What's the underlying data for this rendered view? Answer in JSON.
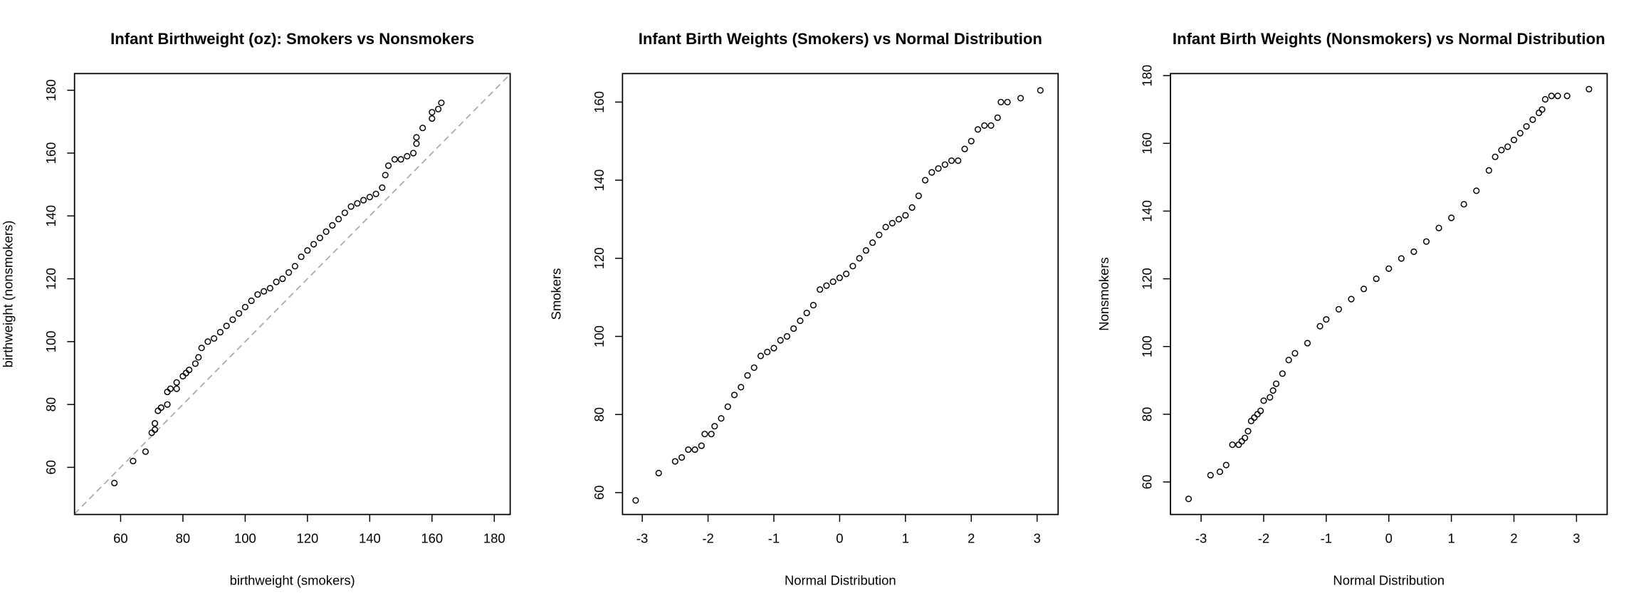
{
  "chart_data": [
    {
      "type": "scatter",
      "title": "Infant Birthweight (oz): Smokers vs Nonsmokers",
      "x_label": "birthweight (smokers)",
      "y_label": "birthweight (nonsmokers)",
      "x": [
        58,
        64,
        68,
        70,
        71,
        71,
        72,
        73,
        75,
        75,
        76,
        78,
        78,
        80,
        81,
        82,
        84,
        85,
        86,
        88,
        90,
        92,
        94,
        96,
        98,
        100,
        102,
        104,
        106,
        108,
        110,
        112,
        114,
        116,
        118,
        120,
        122,
        124,
        126,
        128,
        130,
        132,
        134,
        136,
        138,
        140,
        142,
        144,
        145,
        146,
        148,
        150,
        152,
        154,
        155,
        155,
        157,
        160,
        160,
        162,
        163
      ],
      "values": [
        55,
        62,
        65,
        71,
        72,
        74,
        78,
        79,
        80,
        84,
        85,
        85,
        87,
        89,
        90,
        91,
        93,
        95,
        98,
        100,
        101,
        103,
        105,
        107,
        109,
        111,
        113,
        115,
        116,
        117,
        119,
        120,
        122,
        124,
        127,
        129,
        131,
        133,
        135,
        137,
        139,
        141,
        143,
        144,
        145,
        146,
        147,
        149,
        153,
        156,
        158,
        158,
        159,
        160,
        163,
        165,
        168,
        171,
        173,
        174,
        176
      ],
      "color": "#000000",
      "diagonal_line": true,
      "diagonal_color": "#aaaaaa",
      "xlim": [
        45.2,
        185.1
      ],
      "ylim": [
        45,
        185.3
      ],
      "xticks": [
        60,
        80,
        100,
        120,
        140,
        160,
        180
      ],
      "yticks": [
        60,
        80,
        100,
        120,
        140,
        160,
        180
      ]
    },
    {
      "type": "scatter",
      "title": "Infant Birth Weights (Smokers) vs Normal Distribution",
      "x_label": "Normal Distribution",
      "y_label": "Smokers",
      "x": [
        -3.1,
        -2.75,
        -2.5,
        -2.4,
        -2.3,
        -2.2,
        -2.1,
        -2.05,
        -1.95,
        -1.9,
        -1.8,
        -1.7,
        -1.6,
        -1.5,
        -1.4,
        -1.3,
        -1.2,
        -1.1,
        -1.0,
        -0.9,
        -0.8,
        -0.7,
        -0.6,
        -0.5,
        -0.4,
        -0.3,
        -0.2,
        -0.1,
        0,
        0.1,
        0.2,
        0.3,
        0.4,
        0.5,
        0.6,
        0.7,
        0.8,
        0.9,
        1.0,
        1.1,
        1.2,
        1.3,
        1.4,
        1.5,
        1.6,
        1.7,
        1.8,
        1.9,
        2.0,
        2.1,
        2.2,
        2.3,
        2.4,
        2.45,
        2.55,
        2.75,
        3.05
      ],
      "values": [
        58,
        65,
        68,
        69,
        71,
        71,
        72,
        75,
        75,
        77,
        79,
        82,
        85,
        87,
        90,
        92,
        95,
        96,
        97,
        99,
        100,
        102,
        104,
        106,
        108,
        112,
        113,
        114,
        115,
        116,
        118,
        120,
        122,
        124,
        126,
        128,
        129,
        130,
        131,
        133,
        136,
        140,
        142,
        143,
        144,
        145,
        145,
        148,
        150,
        153,
        154,
        154,
        156,
        160,
        160,
        161,
        163
      ],
      "color": "#000000",
      "xlim": [
        -3.3,
        3.32
      ],
      "ylim": [
        54.4,
        167.3
      ],
      "xticks": [
        -3,
        -2,
        -1,
        0,
        1,
        2,
        3
      ],
      "yticks": [
        60,
        80,
        100,
        120,
        140,
        160
      ]
    },
    {
      "type": "scatter",
      "title": "Infant Birth Weights (Nonsmokers) vs Normal Distribution",
      "x_label": "Normal Distribution",
      "y_label": "Nonsmokers",
      "x": [
        -3.2,
        -2.85,
        -2.7,
        -2.6,
        -2.5,
        -2.4,
        -2.35,
        -2.3,
        -2.25,
        -2.2,
        -2.15,
        -2.1,
        -2.05,
        -2.0,
        -1.9,
        -1.85,
        -1.8,
        -1.7,
        -1.6,
        -1.5,
        -1.3,
        -1.1,
        -1.0,
        -0.8,
        -0.6,
        -0.4,
        -0.2,
        0,
        0.2,
        0.4,
        0.6,
        0.8,
        1.0,
        1.2,
        1.4,
        1.6,
        1.7,
        1.8,
        1.9,
        2.0,
        2.1,
        2.2,
        2.3,
        2.4,
        2.45,
        2.5,
        2.6,
        2.7,
        2.85,
        3.2
      ],
      "values": [
        55,
        62,
        63,
        65,
        71,
        71,
        72,
        73,
        75,
        78,
        79,
        80,
        81,
        84,
        85,
        87,
        89,
        92,
        96,
        98,
        101,
        106,
        108,
        111,
        114,
        117,
        120,
        123,
        126,
        128,
        131,
        135,
        138,
        142,
        146,
        152,
        156,
        158,
        159,
        161,
        163,
        165,
        167,
        169,
        170,
        173,
        174,
        174,
        174,
        176
      ],
      "color": "#000000",
      "xlim": [
        -3.49,
        3.49
      ],
      "ylim": [
        50.4,
        180.6
      ],
      "xticks": [
        -3,
        -2,
        -1,
        0,
        1,
        2,
        3
      ],
      "yticks": [
        60,
        80,
        100,
        120,
        140,
        160,
        180
      ]
    }
  ]
}
